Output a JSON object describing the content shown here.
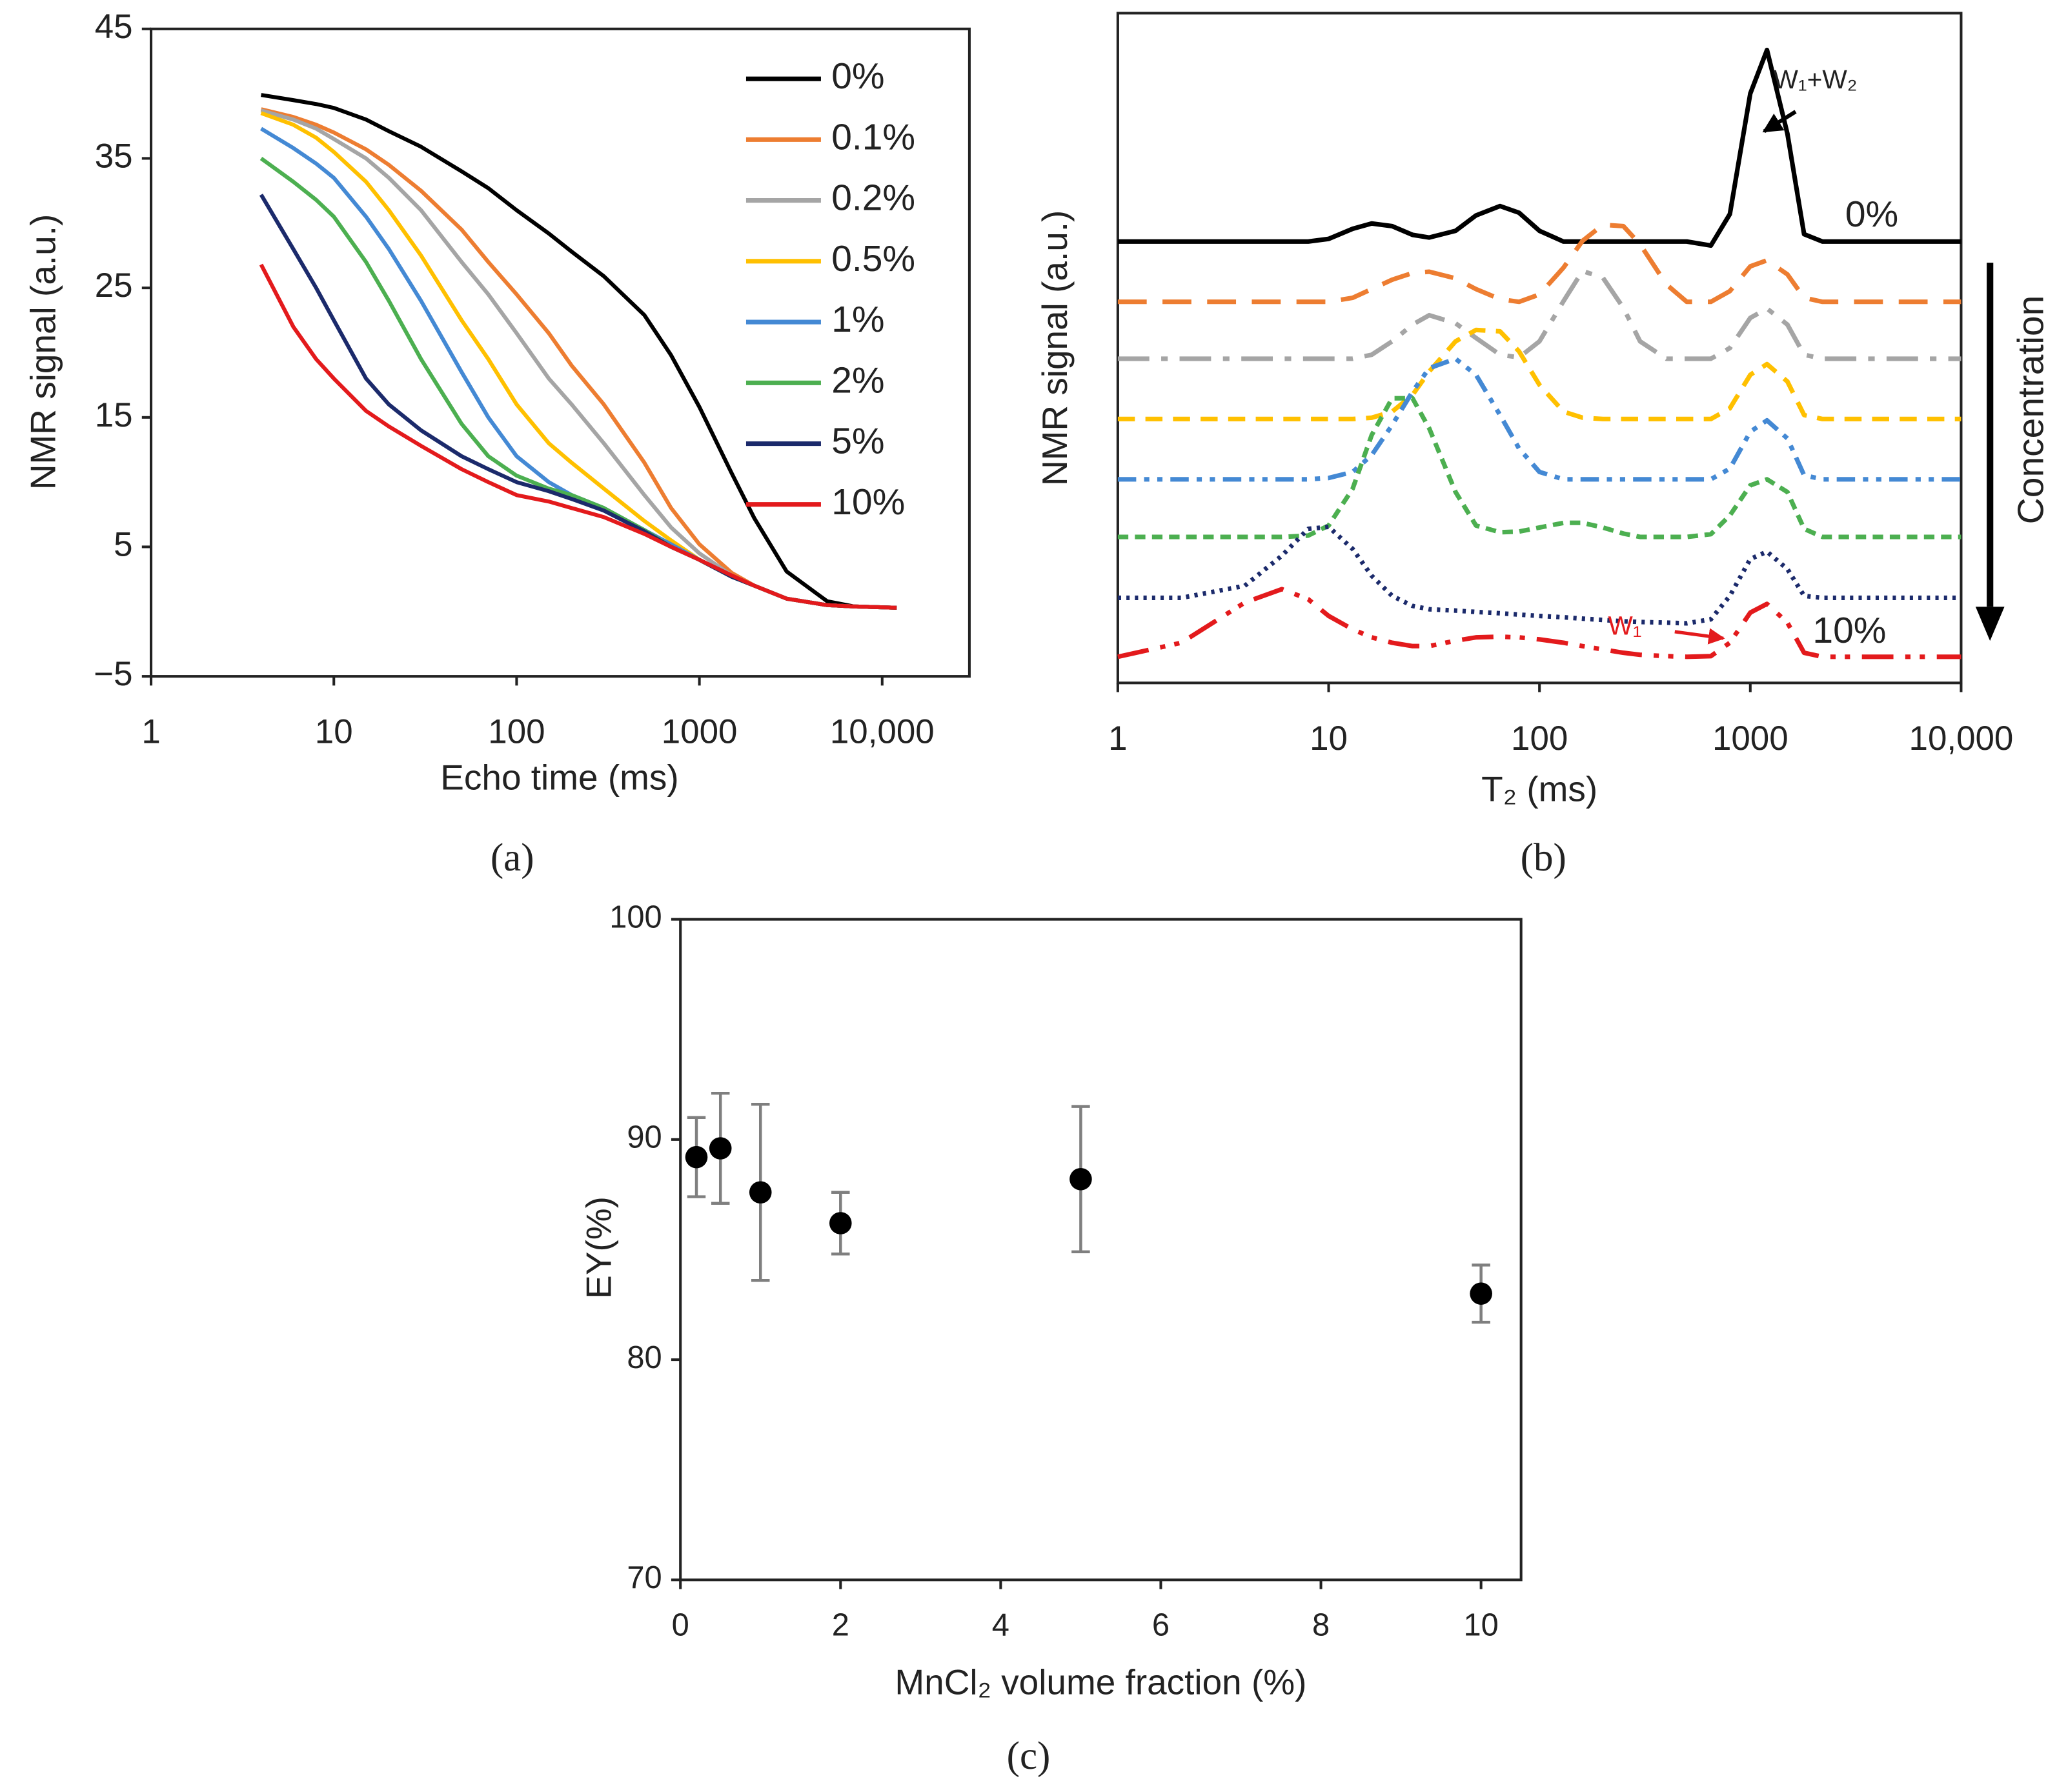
{
  "chart_data": [
    {
      "type": "line",
      "label": "(a)",
      "x_label": "Echo time (ms)",
      "y_label": "NMR signal (a.u.)",
      "xlog": true,
      "xlim": [
        1,
        30000
      ],
      "xticks": [
        1,
        10,
        100,
        1000,
        {
          "value": 10000,
          "label": "10,000"
        }
      ],
      "ylim": [
        -5,
        45
      ],
      "yticks": [
        {
          "value": -5,
          "label": "−5"
        },
        5,
        15,
        25,
        35,
        45
      ],
      "legend": "upper right",
      "x": [
        4,
        6,
        8,
        10,
        15,
        20,
        30,
        50,
        70,
        100,
        150,
        200,
        300,
        500,
        700,
        1000,
        1500,
        2000,
        3000,
        5000,
        7000,
        12000
      ],
      "series": [
        {
          "name": "0%",
          "color": "#000000",
          "dash": "solid",
          "values": [
            39.9,
            39.5,
            39.2,
            38.9,
            38,
            37.1,
            35.9,
            34,
            32.7,
            31,
            29.2,
            27.8,
            25.9,
            22.9,
            19.8,
            15.8,
            10.7,
            7.2,
            3.1,
            0.8,
            0.4,
            0.3
          ]
        },
        {
          "name": "0.1%",
          "color": "#ed7d31",
          "dash": "solid",
          "values": [
            38.8,
            38.2,
            37.6,
            37,
            35.7,
            34.5,
            32.5,
            29.5,
            27,
            24.5,
            21.5,
            19,
            16,
            11.5,
            8,
            5.2,
            3,
            2,
            1,
            0.5,
            0.4,
            0.3
          ]
        },
        {
          "name": "0.2%",
          "color": "#a5a5a5",
          "dash": "solid",
          "values": [
            38.7,
            38,
            37.3,
            36.5,
            35,
            33.5,
            31,
            27,
            24.5,
            21.5,
            18,
            16,
            13,
            9,
            6.5,
            4.5,
            2.8,
            2,
            1,
            0.5,
            0.4,
            0.3
          ]
        },
        {
          "name": "0.5%",
          "color": "#ffc000",
          "dash": "solid",
          "values": [
            38.5,
            37.6,
            36.6,
            35.5,
            33.2,
            31,
            27.5,
            22.5,
            19.5,
            16,
            13,
            11.5,
            9.5,
            7,
            5.5,
            4,
            2.7,
            2,
            1,
            0.5,
            0.4,
            0.3
          ]
        },
        {
          "name": "1%",
          "color": "#4489d4",
          "dash": "solid",
          "values": [
            37.3,
            35.8,
            34.6,
            33.5,
            30.5,
            28,
            24,
            18.5,
            15,
            12,
            10,
            9,
            8,
            6.3,
            5.2,
            4,
            2.7,
            2,
            1,
            0.5,
            0.4,
            0.3
          ]
        },
        {
          "name": "2%",
          "color": "#4caf50",
          "dash": "solid",
          "values": [
            35,
            33.2,
            31.8,
            30.5,
            27,
            24,
            19.5,
            14.5,
            12,
            10.5,
            9.5,
            9,
            8,
            6.3,
            5,
            4,
            2.7,
            2,
            1,
            0.5,
            0.4,
            0.3
          ]
        },
        {
          "name": "5%",
          "color": "#1b2a6b",
          "dash": "solid",
          "values": [
            32.2,
            28,
            25,
            22.5,
            18,
            16,
            14,
            12,
            11,
            10,
            9.3,
            8.7,
            7.8,
            6.2,
            5,
            4,
            2.7,
            2,
            1,
            0.5,
            0.4,
            0.3
          ]
        },
        {
          "name": "10%",
          "color": "#e31a1c",
          "dash": "solid",
          "values": [
            26.8,
            22,
            19.5,
            18,
            15.5,
            14.3,
            12.8,
            11,
            10,
            9,
            8.5,
            8,
            7.3,
            6,
            5,
            4,
            2.8,
            2,
            1,
            0.5,
            0.4,
            0.3
          ]
        }
      ]
    },
    {
      "type": "line",
      "label": "(b)",
      "x_label": "T₂ (ms)",
      "y_label": "NMR signal (a.u.)",
      "xlog": true,
      "xlim": [
        1,
        10000
      ],
      "xticks": [
        1,
        10,
        100,
        1000,
        {
          "value": 10000,
          "label": "10,000"
        }
      ],
      "ylim": [
        0,
        100
      ],
      "annotations": [
        "W₁+W₂",
        "0%",
        "10%",
        "W₁",
        "Concentration"
      ],
      "x": [
        1,
        2,
        4,
        6,
        8,
        10,
        13,
        16,
        20,
        25,
        30,
        40,
        50,
        65,
        80,
        100,
        130,
        160,
        200,
        250,
        300,
        400,
        500,
        650,
        800,
        1000,
        1200,
        1500,
        1800,
        2200,
        3000,
        5000,
        10000
      ],
      "series": [
        {
          "color": "#000000",
          "dash": "solid",
          "values": [
            65.9,
            65.9,
            65.9,
            65.9,
            65.9,
            66.3,
            67.8,
            68.6,
            68.2,
            66.9,
            66.5,
            67.5,
            69.8,
            71.2,
            70.2,
            67.5,
            65.9,
            65.9,
            65.9,
            65.9,
            65.9,
            65.9,
            65.9,
            65.3,
            70,
            88,
            94.5,
            82,
            67,
            65.9,
            65.9,
            65.9,
            65.9
          ]
        },
        {
          "color": "#ed7d31",
          "dash": "long-dash",
          "values": [
            56.9,
            56.9,
            56.9,
            56.9,
            56.9,
            56.9,
            57.5,
            58.8,
            60.2,
            61.2,
            61.4,
            60.4,
            58.8,
            57.3,
            56.9,
            58,
            62,
            66,
            68.4,
            68.2,
            65.5,
            59.5,
            56.9,
            56.9,
            58.5,
            62.2,
            63.1,
            61,
            57.5,
            56.9,
            56.9,
            56.9,
            56.9
          ]
        },
        {
          "color": "#a5a5a5",
          "dash": "dash-dot",
          "values": [
            48.4,
            48.4,
            48.4,
            48.4,
            48.4,
            48.4,
            48.4,
            49,
            51,
            53.5,
            54.9,
            53.7,
            51.5,
            49,
            48.6,
            51,
            57,
            61.5,
            60.5,
            56,
            51,
            48.4,
            48.4,
            48.4,
            50,
            54.5,
            55.9,
            53.5,
            49,
            48.4,
            48.4,
            48.4,
            48.4
          ]
        },
        {
          "color": "#ffc000",
          "dash": "dash",
          "values": [
            39.4,
            39.4,
            39.4,
            39.4,
            39.4,
            39.4,
            39.4,
            39.6,
            40.5,
            43,
            46.5,
            51,
            52.7,
            52.5,
            49.5,
            44.5,
            40.5,
            39.6,
            39.4,
            39.4,
            39.4,
            39.4,
            39.4,
            39.4,
            41,
            46,
            47.6,
            45,
            40,
            39.4,
            39.4,
            39.4,
            39.4
          ]
        },
        {
          "color": "#4489d4",
          "dash": "dash-dot-dot",
          "values": [
            30.4,
            30.4,
            30.4,
            30.4,
            30.4,
            30.6,
            31.5,
            34,
            38.5,
            43.5,
            47,
            48.4,
            46,
            40,
            35,
            31.5,
            30.4,
            30.4,
            30.4,
            30.4,
            30.4,
            30.4,
            30.4,
            30.4,
            32,
            37.5,
            39.2,
            36.5,
            31,
            30.4,
            30.4,
            30.4,
            30.4
          ]
        },
        {
          "color": "#4caf50",
          "dash": "short-dash",
          "values": [
            21.8,
            21.8,
            21.8,
            21.8,
            22,
            23.5,
            29,
            37,
            42.5,
            42.5,
            38,
            28.5,
            23.5,
            22.5,
            22.6,
            23.2,
            23.9,
            23.9,
            23.2,
            22.3,
            21.8,
            21.8,
            21.8,
            22.2,
            25,
            29.5,
            30.4,
            28.5,
            23,
            21.8,
            21.8,
            21.8,
            21.8
          ]
        },
        {
          "color": "#1b2a6b",
          "dash": "dot",
          "values": [
            12.7,
            12.7,
            14.5,
            19,
            23,
            23.3,
            20,
            16,
            13,
            11.5,
            11,
            10.8,
            10.6,
            10.4,
            10.2,
            10,
            9.8,
            9.6,
            9.4,
            9.2,
            9.1,
            9,
            8.9,
            9.5,
            13,
            18.5,
            19.6,
            17,
            13,
            12.7,
            12.7,
            12.7,
            12.7
          ]
        },
        {
          "color": "#e31a1c",
          "dash": "long-dash-dot-dot",
          "values": [
            3.9,
            6,
            12,
            14,
            12.5,
            10,
            8,
            6.8,
            6,
            5.5,
            5.5,
            6.3,
            6.8,
            6.9,
            6.8,
            6.5,
            6,
            5.5,
            5,
            4.5,
            4.2,
            4,
            3.9,
            4,
            6,
            10.5,
            11.8,
            9,
            4.5,
            3.9,
            3.9,
            3.9,
            3.9
          ]
        }
      ]
    },
    {
      "type": "scatter",
      "label": "(c)",
      "x_label": "MnCl₂ volume fraction (%)",
      "y_label": "EY(%)",
      "xlim": [
        0,
        10.5
      ],
      "xticks": [
        0,
        2,
        4,
        6,
        8,
        10
      ],
      "ylim": [
        70,
        100
      ],
      "yticks": [
        70,
        80,
        90,
        100
      ],
      "color": "#000000",
      "error_color": "#7f7f7f",
      "x": [
        0.2,
        0.5,
        1,
        2,
        5,
        10
      ],
      "values": [
        89.2,
        89.6,
        87.6,
        86.2,
        88.2,
        83.0
      ],
      "errors": [
        1.8,
        2.5,
        4,
        1.4,
        3.3,
        1.3
      ]
    }
  ]
}
